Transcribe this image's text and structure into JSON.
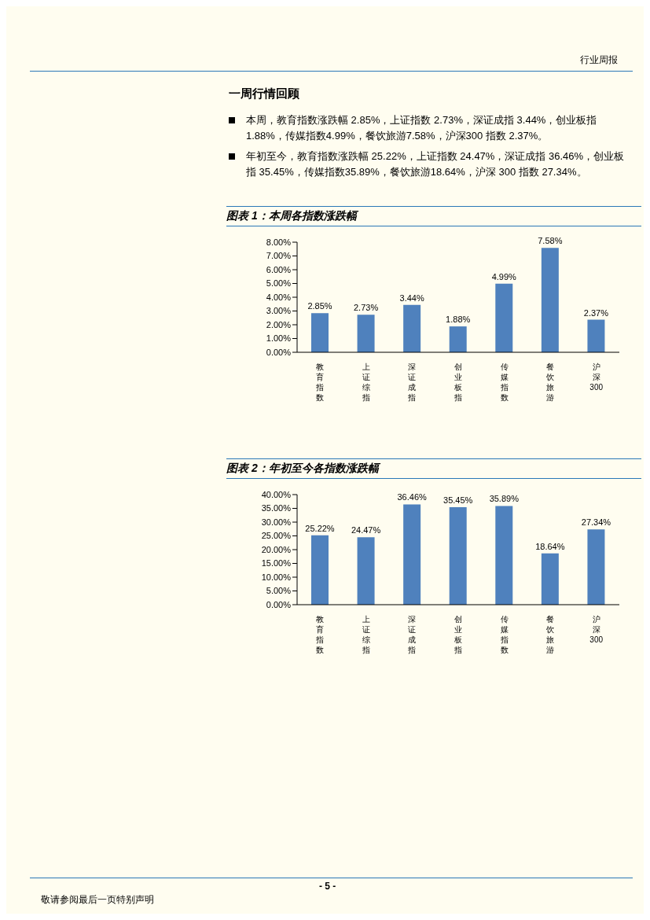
{
  "chart_data": [
    {
      "type": "other",
      "title": "一周行情回顾",
      "subtitle": "行业周报",
      "annotations": [
        "本周，教育指数涨跌幅 2.85%，上证指数 2.73%，深证成指 3.44%，创业板指 1.88%，传媒指数4.99%，餐饮旅游7.58%，沪深300 指数 2.37%。",
        "年初至今，教育指数涨跌幅 25.22%，上证指数 24.47%，深证成指 36.46%，创业板指 35.45%，传媒指数35.89%，餐饮旅游18.64%，沪深 300 指数 27.34%。",
        "- 5 -",
        "敬请参阅最后一页特别声明"
      ]
    },
    {
      "type": "bar",
      "title": "图表 1：本周各指数涨跌幅",
      "categories": [
        "教育指数",
        "上证综指",
        "深证成指",
        "创业板指",
        "传媒指数",
        "餐饮旅游",
        "沪深300"
      ],
      "values": [
        2.85,
        2.73,
        3.44,
        1.88,
        4.99,
        7.58,
        2.37
      ],
      "value_labels": [
        "2.85%",
        "2.73%",
        "3.44%",
        "1.88%",
        "4.99%",
        "7.58%",
        "2.37%"
      ],
      "color": "#4f81bd",
      "ylim": [
        0,
        8
      ],
      "yticks": [
        {
          "value": 0,
          "label": "0.00%"
        },
        {
          "value": 1,
          "label": "1.00%"
        },
        {
          "value": 2,
          "label": "2.00%"
        },
        {
          "value": 3,
          "label": "3.00%"
        },
        {
          "value": 4,
          "label": "4.00%"
        },
        {
          "value": 5,
          "label": "5.00%"
        },
        {
          "value": 6,
          "label": "6.00%"
        },
        {
          "value": 7,
          "label": "7.00%"
        },
        {
          "value": 8,
          "label": "8.00%"
        }
      ]
    },
    {
      "type": "bar",
      "title": "图表 2：年初至今各指数涨跌幅",
      "categories": [
        "教育指数",
        "上证综指",
        "深证成指",
        "创业板指",
        "传媒指数",
        "餐饮旅游",
        "沪深300"
      ],
      "values": [
        25.22,
        24.47,
        36.46,
        35.45,
        35.89,
        18.64,
        27.34
      ],
      "value_labels": [
        "25.22%",
        "24.47%",
        "36.46%",
        "35.45%",
        "35.89%",
        "18.64%",
        "27.34%"
      ],
      "color": "#4f81bd",
      "ylim": [
        0,
        40
      ],
      "yticks": [
        {
          "value": 0,
          "label": "0.00%"
        },
        {
          "value": 5,
          "label": "5.00%"
        },
        {
          "value": 10,
          "label": "10.00%"
        },
        {
          "value": 15,
          "label": "15.00%"
        },
        {
          "value": 20,
          "label": "20.00%"
        },
        {
          "value": 25,
          "label": "25.00%"
        },
        {
          "value": 30,
          "label": "30.00%"
        },
        {
          "value": 35,
          "label": "35.00%"
        },
        {
          "value": 40,
          "label": "40.00%"
        }
      ]
    }
  ]
}
